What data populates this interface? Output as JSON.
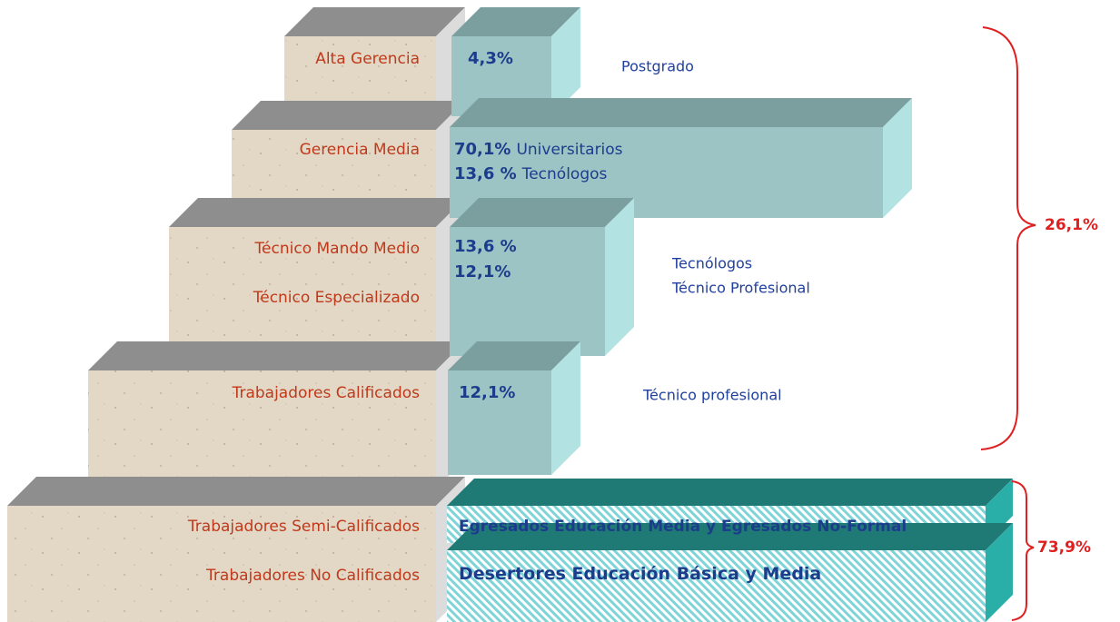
{
  "levels": [
    {
      "labels": [
        "Alta Gerencia"
      ],
      "box": [
        {
          "pct": "4,3%"
        }
      ],
      "note": [
        "Postgrado"
      ]
    },
    {
      "labels": [
        "Gerencia Media"
      ],
      "box": [
        {
          "pct": "70,1%",
          "text": "Universitarios"
        },
        {
          "pct": "13,6 %",
          "text": "Tecnólogos"
        }
      ],
      "note": []
    },
    {
      "labels": [
        "Técnico Mando Medio",
        "Técnico Especializado"
      ],
      "box": [
        {
          "pct": "13,6 %"
        },
        {
          "pct": "12,1%"
        }
      ],
      "note": [
        "Tecnólogos",
        "Técnico Profesional"
      ]
    },
    {
      "labels": [
        "Trabajadores Calificados"
      ],
      "box": [
        {
          "pct": "12,1%"
        }
      ],
      "note": [
        "Técnico profesional"
      ]
    },
    {
      "labels": [
        "Trabajadores Semi-Calificados"
      ],
      "box": [
        {
          "text": "Egresados Educación Media y Egresados No-Formal"
        }
      ],
      "note": []
    },
    {
      "labels": [
        "Trabajadores No Calificados"
      ],
      "box": [
        {
          "text": "Desertores Educación Básica y Media"
        }
      ],
      "note": []
    }
  ],
  "brackets": [
    {
      "label": "26,1%"
    },
    {
      "label": "73,9%"
    }
  ]
}
